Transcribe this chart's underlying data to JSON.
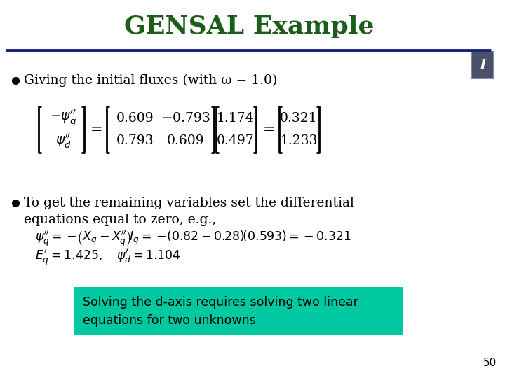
{
  "title": "GENSAL Example",
  "title_color": "#1a5e1a",
  "title_fontsize": 26,
  "bg_color": "#ffffff",
  "slide_number": "50",
  "line_color": "#1a237e",
  "icon_color": "#4a5068",
  "icon_border_color": "#8888aa",
  "teal_box_color": "#00c8a0",
  "teal_box_text_color": "#000000",
  "bullet1": "Giving the initial fluxes (with ω = 1.0)",
  "bullet2_line1": "To get the remaining variables set the differential",
  "bullet2_line2": "equations equal to zero, e.g.,",
  "teal_text_line1": "Solving the d-axis requires solving two linear",
  "teal_text_line2": "equations for two unknowns"
}
